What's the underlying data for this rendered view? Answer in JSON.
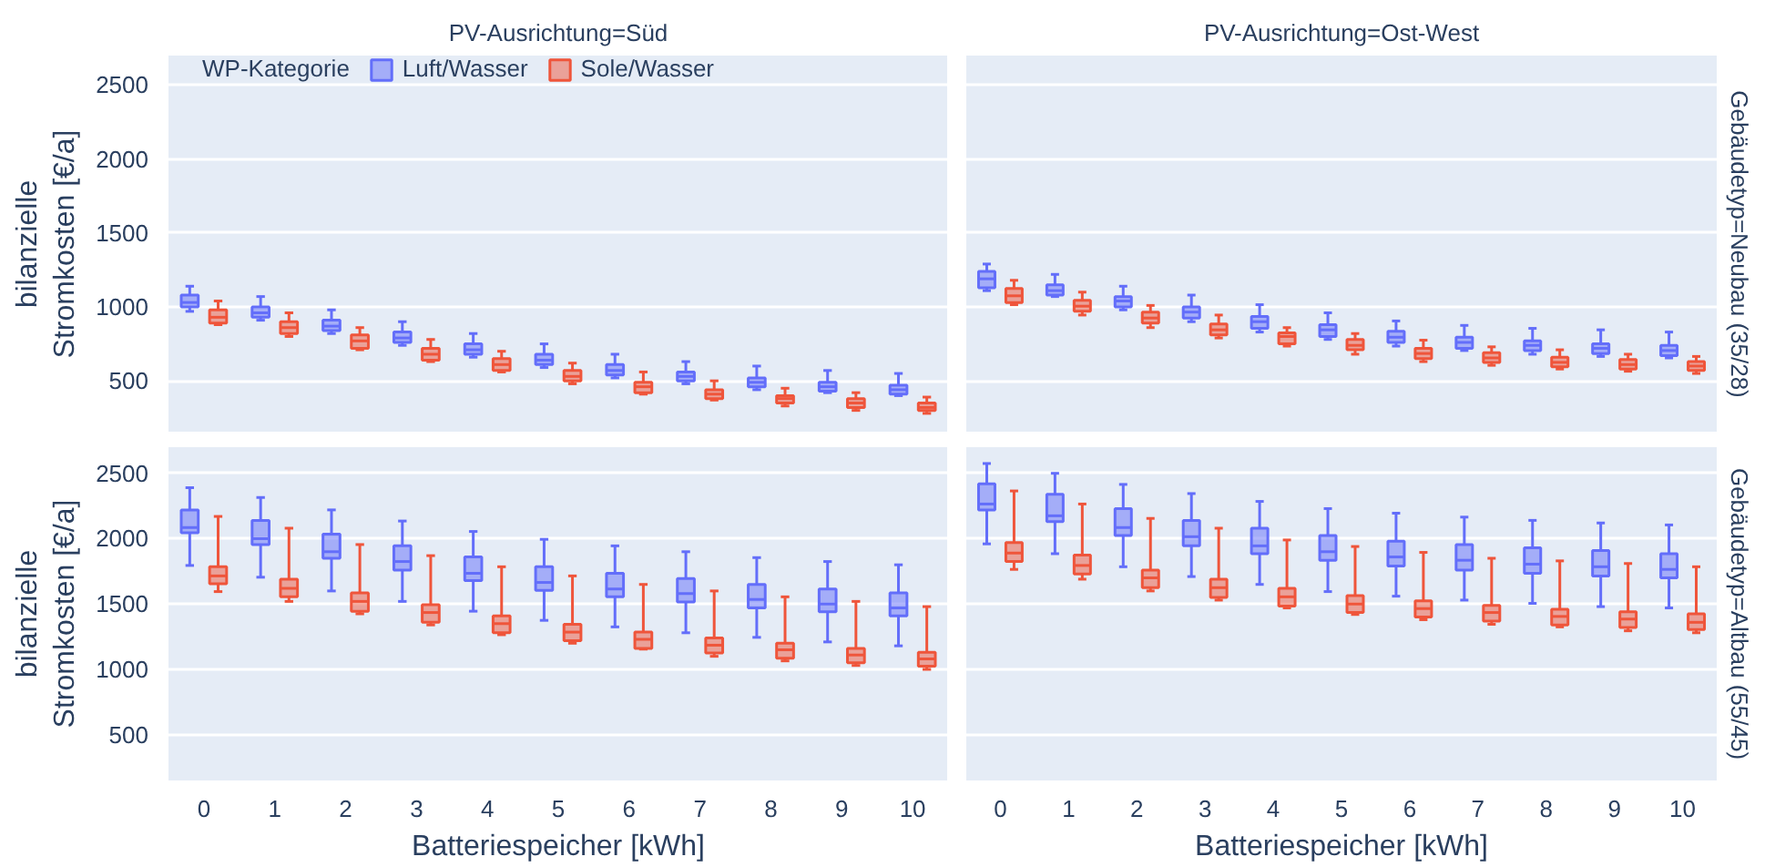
{
  "chart_data": [
    {
      "type": "box",
      "title": "PV-Ausrichtung=Süd",
      "ylabel": "bilanzielle\nStromkosten [€/a]",
      "legend_title": "WP-Kategorie",
      "legend": "top",
      "grid": "y",
      "tick_labels": "y",
      "ylim": [
        150,
        2700
      ],
      "yticks": [
        500,
        1000,
        1500,
        2000,
        2500
      ],
      "categories": [
        "0",
        "1",
        "2",
        "3",
        "4",
        "5",
        "6",
        "7",
        "8",
        "9",
        "10"
      ],
      "series": [
        {
          "name": "Luft/Wasser",
          "color": "#636efa",
          "boxes": [
            {
              "low": 970,
              "q1": 1000,
              "median": 1030,
              "q3": 1080,
              "high": 1140
            },
            {
              "low": 910,
              "q1": 930,
              "median": 960,
              "q3": 1000,
              "high": 1070
            },
            {
              "low": 820,
              "q1": 840,
              "median": 870,
              "q3": 910,
              "high": 980
            },
            {
              "low": 740,
              "q1": 760,
              "median": 790,
              "q3": 830,
              "high": 900
            },
            {
              "low": 660,
              "q1": 680,
              "median": 710,
              "q3": 750,
              "high": 820
            },
            {
              "low": 590,
              "q1": 610,
              "median": 640,
              "q3": 680,
              "high": 750
            },
            {
              "low": 520,
              "q1": 540,
              "median": 570,
              "q3": 610,
              "high": 680
            },
            {
              "low": 480,
              "q1": 500,
              "median": 530,
              "q3": 560,
              "high": 630
            },
            {
              "low": 440,
              "q1": 460,
              "median": 490,
              "q3": 520,
              "high": 600
            },
            {
              "low": 420,
              "q1": 430,
              "median": 460,
              "q3": 490,
              "high": 570
            },
            {
              "low": 400,
              "q1": 410,
              "median": 440,
              "q3": 470,
              "high": 550
            }
          ]
        },
        {
          "name": "Sole/Wasser",
          "color": "#ef553b",
          "boxes": [
            {
              "low": 880,
              "q1": 890,
              "median": 930,
              "q3": 980,
              "high": 1040
            },
            {
              "low": 800,
              "q1": 820,
              "median": 860,
              "q3": 900,
              "high": 960
            },
            {
              "low": 710,
              "q1": 720,
              "median": 770,
              "q3": 810,
              "high": 860
            },
            {
              "low": 630,
              "q1": 640,
              "median": 680,
              "q3": 720,
              "high": 780
            },
            {
              "low": 560,
              "q1": 570,
              "median": 610,
              "q3": 650,
              "high": 700
            },
            {
              "low": 480,
              "q1": 500,
              "median": 530,
              "q3": 570,
              "high": 620
            },
            {
              "low": 410,
              "q1": 420,
              "median": 460,
              "q3": 490,
              "high": 560
            },
            {
              "low": 370,
              "q1": 380,
              "median": 410,
              "q3": 440,
              "high": 500
            },
            {
              "low": 330,
              "q1": 350,
              "median": 380,
              "q3": 400,
              "high": 450
            },
            {
              "low": 300,
              "q1": 320,
              "median": 350,
              "q3": 380,
              "high": 420
            },
            {
              "low": 280,
              "q1": 300,
              "median": 320,
              "q3": 350,
              "high": 390
            }
          ]
        }
      ]
    },
    {
      "type": "box",
      "title": "PV-Ausrichtung=Ost-West",
      "annotations": [
        "Gebäudetyp=Neubau (35/28)"
      ],
      "grid": "y",
      "tick_labels": false,
      "ylim": [
        150,
        2700
      ],
      "yticks": [
        500,
        1000,
        1500,
        2000,
        2500
      ],
      "categories": [
        "0",
        "1",
        "2",
        "3",
        "4",
        "5",
        "6",
        "7",
        "8",
        "9",
        "10"
      ],
      "series": [
        {
          "color": "#636efa",
          "boxes": [
            {
              "low": 1110,
              "q1": 1130,
              "median": 1190,
              "q3": 1240,
              "high": 1290
            },
            {
              "low": 1070,
              "q1": 1080,
              "median": 1110,
              "q3": 1150,
              "high": 1220
            },
            {
              "low": 980,
              "q1": 1000,
              "median": 1040,
              "q3": 1070,
              "high": 1140
            },
            {
              "low": 900,
              "q1": 925,
              "median": 965,
              "q3": 1000,
              "high": 1080
            },
            {
              "low": 830,
              "q1": 855,
              "median": 900,
              "q3": 935,
              "high": 1015
            },
            {
              "low": 780,
              "q1": 800,
              "median": 845,
              "q3": 880,
              "high": 960
            },
            {
              "low": 735,
              "q1": 760,
              "median": 795,
              "q3": 835,
              "high": 905
            },
            {
              "low": 705,
              "q1": 720,
              "median": 760,
              "q3": 795,
              "high": 875
            },
            {
              "low": 680,
              "q1": 705,
              "median": 740,
              "q3": 770,
              "high": 855
            },
            {
              "low": 665,
              "q1": 685,
              "median": 720,
              "q3": 750,
              "high": 845
            },
            {
              "low": 655,
              "q1": 670,
              "median": 705,
              "q3": 740,
              "high": 830
            }
          ]
        },
        {
          "color": "#ef553b",
          "boxes": [
            {
              "low": 1015,
              "q1": 1030,
              "median": 1075,
              "q3": 1125,
              "high": 1180
            },
            {
              "low": 945,
              "q1": 970,
              "median": 1005,
              "q3": 1045,
              "high": 1100
            },
            {
              "low": 860,
              "q1": 890,
              "median": 925,
              "q3": 965,
              "high": 1010
            },
            {
              "low": 790,
              "q1": 810,
              "median": 845,
              "q3": 885,
              "high": 945
            },
            {
              "low": 735,
              "q1": 750,
              "median": 800,
              "q3": 825,
              "high": 860
            },
            {
              "low": 680,
              "q1": 710,
              "median": 740,
              "q3": 780,
              "high": 820
            },
            {
              "low": 630,
              "q1": 650,
              "median": 685,
              "q3": 720,
              "high": 775
            },
            {
              "low": 605,
              "q1": 625,
              "median": 655,
              "q3": 690,
              "high": 730
            },
            {
              "low": 580,
              "q1": 595,
              "median": 625,
              "q3": 660,
              "high": 710
            },
            {
              "low": 565,
              "q1": 580,
              "median": 610,
              "q3": 645,
              "high": 680
            },
            {
              "low": 550,
              "q1": 570,
              "median": 600,
              "q3": 630,
              "high": 665
            }
          ]
        }
      ]
    },
    {
      "type": "box",
      "xlabel": "Batteriespeicher [kWh]",
      "ylabel": "bilanzielle\nStromkosten [€/a]",
      "grid": "y",
      "ylim": [
        150,
        2700
      ],
      "yticks": [
        500,
        1000,
        1500,
        2000,
        2500
      ],
      "categories": [
        "0",
        "1",
        "2",
        "3",
        "4",
        "5",
        "6",
        "7",
        "8",
        "9",
        "10"
      ],
      "series": [
        {
          "color": "#636efa",
          "boxes": [
            {
              "low": 1795,
              "q1": 2045,
              "median": 2085,
              "q3": 2220,
              "high": 2390
            },
            {
              "low": 1705,
              "q1": 1955,
              "median": 2000,
              "q3": 2140,
              "high": 2315
            },
            {
              "low": 1600,
              "q1": 1850,
              "median": 1900,
              "q3": 2035,
              "high": 2220
            },
            {
              "low": 1520,
              "q1": 1760,
              "median": 1825,
              "q3": 1945,
              "high": 2135
            },
            {
              "low": 1445,
              "q1": 1680,
              "median": 1735,
              "q3": 1860,
              "high": 2055
            },
            {
              "low": 1375,
              "q1": 1605,
              "median": 1665,
              "q3": 1785,
              "high": 1995
            },
            {
              "low": 1325,
              "q1": 1555,
              "median": 1615,
              "q3": 1735,
              "high": 1945
            },
            {
              "low": 1280,
              "q1": 1515,
              "median": 1580,
              "q3": 1695,
              "high": 1900
            },
            {
              "low": 1245,
              "q1": 1470,
              "median": 1535,
              "q3": 1650,
              "high": 1855
            },
            {
              "low": 1210,
              "q1": 1440,
              "median": 1500,
              "q3": 1615,
              "high": 1825
            },
            {
              "low": 1180,
              "q1": 1410,
              "median": 1470,
              "q3": 1585,
              "high": 1800
            }
          ]
        },
        {
          "color": "#ef553b",
          "boxes": [
            {
              "low": 1595,
              "q1": 1655,
              "median": 1715,
              "q3": 1785,
              "high": 2170
            },
            {
              "low": 1520,
              "q1": 1555,
              "median": 1620,
              "q3": 1690,
              "high": 2080
            },
            {
              "low": 1425,
              "q1": 1445,
              "median": 1520,
              "q3": 1585,
              "high": 1955
            },
            {
              "low": 1340,
              "q1": 1360,
              "median": 1435,
              "q3": 1495,
              "high": 1870
            },
            {
              "low": 1265,
              "q1": 1280,
              "median": 1350,
              "q3": 1410,
              "high": 1785
            },
            {
              "low": 1200,
              "q1": 1220,
              "median": 1285,
              "q3": 1345,
              "high": 1715
            },
            {
              "low": 1155,
              "q1": 1160,
              "median": 1230,
              "q3": 1285,
              "high": 1650
            },
            {
              "low": 1100,
              "q1": 1125,
              "median": 1185,
              "q3": 1240,
              "high": 1600
            },
            {
              "low": 1065,
              "q1": 1085,
              "median": 1150,
              "q3": 1200,
              "high": 1555
            },
            {
              "low": 1030,
              "q1": 1050,
              "median": 1110,
              "q3": 1160,
              "high": 1520
            },
            {
              "low": 1000,
              "q1": 1025,
              "median": 1080,
              "q3": 1130,
              "high": 1480
            }
          ]
        }
      ]
    },
    {
      "type": "box",
      "xlabel": "Batteriespeicher [kWh]",
      "annotations": [
        "Gebäudetyp=Altbau (55/45)"
      ],
      "grid": "y",
      "tick_labels": "x",
      "ylim": [
        150,
        2700
      ],
      "yticks": [
        500,
        1000,
        1500,
        2000,
        2500
      ],
      "categories": [
        "0",
        "1",
        "2",
        "3",
        "4",
        "5",
        "6",
        "7",
        "8",
        "9",
        "10"
      ],
      "series": [
        {
          "color": "#636efa",
          "boxes": [
            {
              "low": 1960,
              "q1": 2220,
              "median": 2265,
              "q3": 2420,
              "high": 2575
            },
            {
              "low": 1885,
              "q1": 2130,
              "median": 2175,
              "q3": 2340,
              "high": 2500
            },
            {
              "low": 1785,
              "q1": 2025,
              "median": 2085,
              "q3": 2230,
              "high": 2415
            },
            {
              "low": 1710,
              "q1": 1945,
              "median": 2015,
              "q3": 2140,
              "high": 2345
            },
            {
              "low": 1650,
              "q1": 1885,
              "median": 1945,
              "q3": 2080,
              "high": 2285
            },
            {
              "low": 1595,
              "q1": 1835,
              "median": 1900,
              "q3": 2025,
              "high": 2230
            },
            {
              "low": 1560,
              "q1": 1790,
              "median": 1860,
              "q3": 1980,
              "high": 2195
            },
            {
              "low": 1530,
              "q1": 1760,
              "median": 1835,
              "q3": 1955,
              "high": 2165
            },
            {
              "low": 1505,
              "q1": 1735,
              "median": 1805,
              "q3": 1930,
              "high": 2140
            },
            {
              "low": 1480,
              "q1": 1715,
              "median": 1785,
              "q3": 1910,
              "high": 2120
            },
            {
              "low": 1470,
              "q1": 1700,
              "median": 1765,
              "q3": 1885,
              "high": 2105
            }
          ]
        },
        {
          "color": "#ef553b",
          "boxes": [
            {
              "low": 1765,
              "q1": 1825,
              "median": 1890,
              "q3": 1970,
              "high": 2365
            },
            {
              "low": 1690,
              "q1": 1730,
              "median": 1795,
              "q3": 1875,
              "high": 2265
            },
            {
              "low": 1600,
              "q1": 1625,
              "median": 1700,
              "q3": 1760,
              "high": 2155
            },
            {
              "low": 1530,
              "q1": 1550,
              "median": 1625,
              "q3": 1690,
              "high": 2080
            },
            {
              "low": 1470,
              "q1": 1485,
              "median": 1555,
              "q3": 1620,
              "high": 1990
            },
            {
              "low": 1420,
              "q1": 1435,
              "median": 1500,
              "q3": 1565,
              "high": 1940
            },
            {
              "low": 1380,
              "q1": 1400,
              "median": 1465,
              "q3": 1525,
              "high": 1895
            },
            {
              "low": 1345,
              "q1": 1370,
              "median": 1435,
              "q3": 1490,
              "high": 1850
            },
            {
              "low": 1325,
              "q1": 1340,
              "median": 1405,
              "q3": 1460,
              "high": 1830
            },
            {
              "low": 1295,
              "q1": 1320,
              "median": 1385,
              "q3": 1440,
              "high": 1810
            },
            {
              "low": 1280,
              "q1": 1305,
              "median": 1360,
              "q3": 1425,
              "high": 1785
            }
          ]
        }
      ]
    }
  ]
}
